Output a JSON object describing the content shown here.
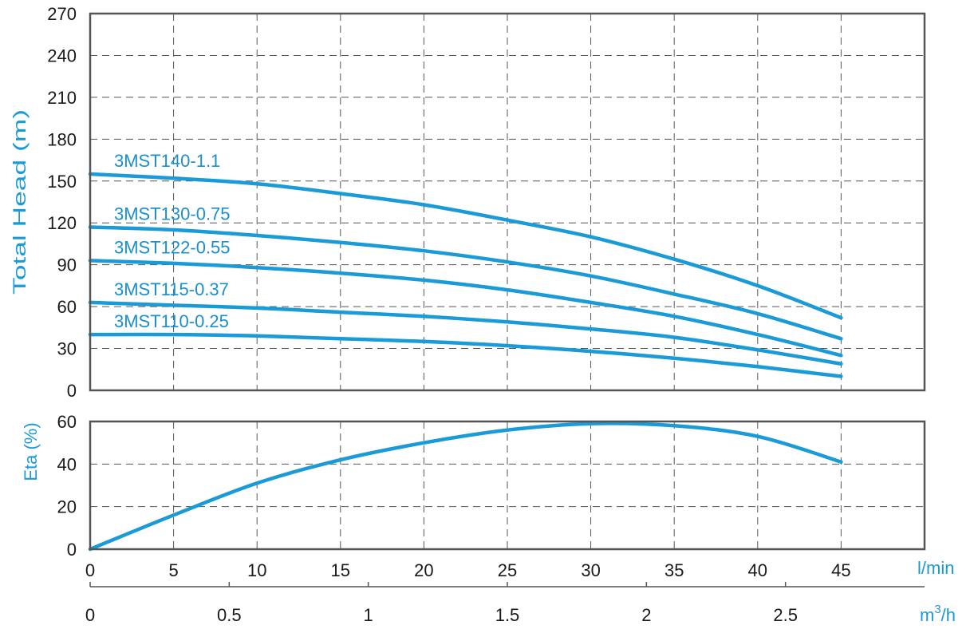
{
  "colors": {
    "curve": "#1a9ad6",
    "axis_title": "#1a9ad6",
    "frame": "#555555",
    "tick": "#1a1a1a"
  },
  "chart_data": [
    {
      "type": "line",
      "ylabel": "Total Head (m)",
      "xlim": [
        0,
        50
      ],
      "ylim": [
        0,
        270
      ],
      "yticks": [
        0,
        30,
        60,
        90,
        120,
        150,
        180,
        210,
        240,
        270
      ],
      "xticks": [
        0,
        5,
        10,
        15,
        20,
        25,
        30,
        35,
        40,
        45,
        50
      ],
      "grid": true,
      "x": [
        0,
        5,
        10,
        15,
        20,
        25,
        30,
        35,
        40,
        45
      ],
      "series": [
        {
          "name": "3MST140-1.1",
          "values": [
            155,
            152,
            148,
            141,
            133,
            122,
            110,
            94,
            75,
            52
          ]
        },
        {
          "name": "3MST130-0.75",
          "values": [
            117,
            115,
            111,
            106,
            100,
            92,
            82,
            69,
            55,
            37
          ]
        },
        {
          "name": "3MST122-0.55",
          "values": [
            93,
            91,
            88,
            84,
            79,
            72,
            63,
            53,
            40,
            25
          ]
        },
        {
          "name": "3MST115-0.37",
          "values": [
            63,
            61,
            59,
            56,
            53,
            49,
            44,
            38,
            29,
            19
          ]
        },
        {
          "name": "3MST110-0.25",
          "values": [
            40,
            40,
            39,
            37,
            35,
            32,
            28,
            23,
            17,
            10
          ]
        }
      ]
    },
    {
      "type": "line",
      "ylabel": "Eta (%)",
      "xlim": [
        0,
        50
      ],
      "ylim": [
        0,
        60
      ],
      "yticks": [
        0,
        20,
        40,
        60
      ],
      "grid": true,
      "x": [
        0,
        5,
        10,
        15,
        20,
        25,
        30,
        35,
        40,
        45
      ],
      "series": [
        {
          "values": [
            0,
            16,
            31,
            42,
            50,
            56,
            59,
            58,
            53,
            41
          ]
        }
      ]
    }
  ],
  "x_axes": {
    "primary": {
      "unit": "l/min",
      "ticks": [
        "0",
        "5",
        "10",
        "15",
        "20",
        "25",
        "30",
        "35",
        "40",
        "45"
      ],
      "values": [
        0,
        5,
        10,
        15,
        20,
        25,
        30,
        35,
        40,
        45
      ]
    },
    "secondary": {
      "unit_base": "m",
      "unit_sup": "3",
      "unit_tail": "/h",
      "ticks": [
        "0",
        "0.5",
        "1",
        "1.5",
        "2",
        "2.5"
      ],
      "values": [
        0,
        0.5,
        1,
        1.5,
        2,
        2.5
      ]
    }
  }
}
